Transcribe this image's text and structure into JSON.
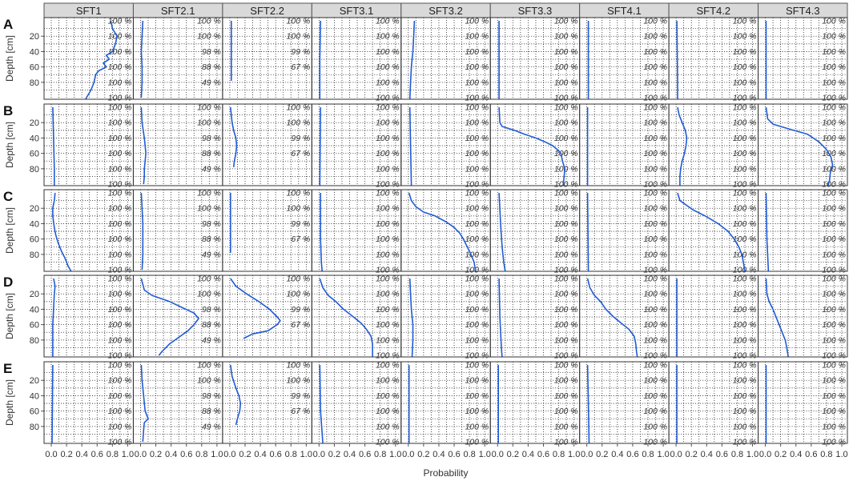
{
  "chart_data": {
    "type": "line",
    "xlabel": "Probability",
    "ylabel": "Depth [cm]",
    "xlim": [
      0,
      1
    ],
    "ylim": [
      100,
      0
    ],
    "x_ticks": [
      "0.0",
      "0.2",
      "0.4",
      "0.6",
      "0.8",
      "1.0"
    ],
    "y_ticks": [
      "20",
      "40",
      "60",
      "80"
    ],
    "y_tick_values": [
      20,
      40,
      60,
      80
    ],
    "grid": true,
    "line_color": "#1f5bd6",
    "columns": [
      "SFT1",
      "SFT2.1",
      "SFT2.2",
      "SFT3.1",
      "SFT3.2",
      "SFT3.3",
      "SFT4.1",
      "SFT4.2",
      "SFT4.3"
    ],
    "rows": [
      "A",
      "B",
      "C",
      "D",
      "E"
    ],
    "pct_depths": [
      0,
      20,
      40,
      60,
      80,
      100
    ],
    "pct_labels": [
      [
        "100 %",
        "100 %",
        "100 %",
        "100 %",
        "100 %",
        "100 %"
      ],
      [
        "100 %",
        "100 %",
        "98 %",
        "88 %",
        "49 %"
      ],
      [
        "100 %",
        "100 %",
        "99 %",
        "67 %"
      ],
      [
        "100 %",
        "100 %",
        "100 %",
        "100 %",
        "100 %",
        "100 %"
      ],
      [
        "100 %",
        "100 %",
        "100 %",
        "100 %",
        "100 %",
        "100 %"
      ],
      [
        "100 %",
        "100 %",
        "100 %",
        "100 %",
        "100 %",
        "100 %"
      ],
      [
        "100 %",
        "100 %",
        "100 %",
        "100 %",
        "100 %",
        "100 %"
      ],
      [
        "100 %",
        "100 %",
        "100 %",
        "100 %",
        "100 %",
        "100 %"
      ],
      [
        "100 %",
        "100 %",
        "100 %",
        "100 %",
        "100 %",
        "100 %"
      ]
    ],
    "max_depth": [
      102,
      100,
      78,
      102,
      102,
      102,
      102,
      102,
      102
    ],
    "profiles": {
      "A": [
        [
          [
            0,
            0.78
          ],
          [
            10,
            0.8
          ],
          [
            20,
            0.86
          ],
          [
            30,
            0.84
          ],
          [
            40,
            0.8
          ],
          [
            45,
            0.72
          ],
          [
            50,
            0.76
          ],
          [
            55,
            0.68
          ],
          [
            60,
            0.72
          ],
          [
            65,
            0.62
          ],
          [
            70,
            0.58
          ],
          [
            80,
            0.56
          ],
          [
            90,
            0.52
          ],
          [
            100,
            0.46
          ],
          [
            102,
            0.45
          ]
        ],
        [
          [
            0,
            0.03
          ],
          [
            20,
            0.02
          ],
          [
            40,
            0.01
          ],
          [
            60,
            0.02
          ],
          [
            80,
            0.02
          ],
          [
            100,
            0.01
          ]
        ],
        [
          [
            0,
            0.02
          ],
          [
            20,
            0.02
          ],
          [
            40,
            0.02
          ],
          [
            60,
            0.02
          ],
          [
            78,
            0.02
          ]
        ],
        [
          [
            0,
            0.02
          ],
          [
            50,
            0.01
          ],
          [
            102,
            0.01
          ]
        ],
        [
          [
            0,
            0.08
          ],
          [
            20,
            0.07
          ],
          [
            40,
            0.06
          ],
          [
            50,
            0.05
          ],
          [
            60,
            0.04
          ],
          [
            80,
            0.03
          ],
          [
            102,
            0.02
          ]
        ],
        [
          [
            0,
            0.02
          ],
          [
            102,
            0.02
          ]
        ],
        [
          [
            0,
            0.02
          ],
          [
            102,
            0.02
          ]
        ],
        [
          [
            0,
            0.01
          ],
          [
            80,
            0.02
          ],
          [
            102,
            0.02
          ]
        ],
        [
          [
            0,
            0.01
          ],
          [
            102,
            0.01
          ]
        ]
      ],
      "B": [
        [
          [
            0,
            0.02
          ],
          [
            40,
            0.03
          ],
          [
            80,
            0.04
          ],
          [
            102,
            0.04
          ]
        ],
        [
          [
            0,
            0.01
          ],
          [
            20,
            0.02
          ],
          [
            40,
            0.05
          ],
          [
            50,
            0.06
          ],
          [
            60,
            0.07
          ],
          [
            70,
            0.06
          ],
          [
            80,
            0.05
          ],
          [
            90,
            0.05
          ],
          [
            100,
            0.04
          ]
        ],
        [
          [
            0,
            0.01
          ],
          [
            20,
            0.03
          ],
          [
            30,
            0.05
          ],
          [
            40,
            0.08
          ],
          [
            50,
            0.09
          ],
          [
            60,
            0.08
          ],
          [
            70,
            0.06
          ],
          [
            78,
            0.05
          ]
        ],
        [
          [
            0,
            0.02
          ],
          [
            102,
            0.01
          ]
        ],
        [
          [
            0,
            0.02
          ],
          [
            50,
            0.03
          ],
          [
            102,
            0.04
          ]
        ],
        [
          [
            0,
            0.02
          ],
          [
            20,
            0.03
          ],
          [
            25,
            0.06
          ],
          [
            30,
            0.22
          ],
          [
            35,
            0.35
          ],
          [
            40,
            0.5
          ],
          [
            45,
            0.62
          ],
          [
            50,
            0.72
          ],
          [
            55,
            0.78
          ],
          [
            60,
            0.83
          ],
          [
            70,
            0.85
          ],
          [
            80,
            0.88
          ],
          [
            90,
            0.87
          ],
          [
            100,
            0.86
          ],
          [
            102,
            0.86
          ]
        ],
        [
          [
            0,
            0.01
          ],
          [
            102,
            0.01
          ]
        ],
        [
          [
            0,
            0.02
          ],
          [
            10,
            0.04
          ],
          [
            20,
            0.08
          ],
          [
            30,
            0.12
          ],
          [
            40,
            0.14
          ],
          [
            50,
            0.13
          ],
          [
            60,
            0.11
          ],
          [
            70,
            0.08
          ],
          [
            80,
            0.06
          ],
          [
            90,
            0.05
          ],
          [
            102,
            0.05
          ]
        ],
        [
          [
            0,
            0.01
          ],
          [
            15,
            0.03
          ],
          [
            22,
            0.1
          ],
          [
            28,
            0.3
          ],
          [
            35,
            0.55
          ],
          [
            45,
            0.7
          ],
          [
            55,
            0.8
          ],
          [
            65,
            0.86
          ],
          [
            75,
            0.88
          ],
          [
            85,
            0.85
          ],
          [
            95,
            0.84
          ],
          [
            102,
            0.82
          ]
        ]
      ],
      "C": [
        [
          [
            0,
            0.05
          ],
          [
            10,
            0.04
          ],
          [
            20,
            0.02
          ],
          [
            30,
            0.02
          ],
          [
            45,
            0.04
          ],
          [
            55,
            0.06
          ],
          [
            65,
            0.09
          ],
          [
            75,
            0.13
          ],
          [
            85,
            0.18
          ],
          [
            95,
            0.22
          ],
          [
            102,
            0.26
          ]
        ],
        [
          [
            0,
            0.01
          ],
          [
            20,
            0.02
          ],
          [
            40,
            0.03
          ],
          [
            60,
            0.03
          ],
          [
            80,
            0.03
          ],
          [
            100,
            0.02
          ]
        ],
        [
          [
            0,
            0.01
          ],
          [
            40,
            0.01
          ],
          [
            78,
            0.01
          ]
        ],
        [
          [
            0,
            0.02
          ],
          [
            60,
            0.02
          ],
          [
            90,
            0.03
          ],
          [
            102,
            0.04
          ]
        ],
        [
          [
            0,
            0.01
          ],
          [
            10,
            0.04
          ],
          [
            18,
            0.1
          ],
          [
            25,
            0.2
          ],
          [
            30,
            0.35
          ],
          [
            38,
            0.5
          ],
          [
            45,
            0.6
          ],
          [
            52,
            0.67
          ],
          [
            60,
            0.72
          ],
          [
            70,
            0.77
          ],
          [
            80,
            0.82
          ],
          [
            90,
            0.86
          ],
          [
            102,
            0.88
          ]
        ],
        [
          [
            0,
            0.02
          ],
          [
            40,
            0.04
          ],
          [
            70,
            0.06
          ],
          [
            90,
            0.08
          ],
          [
            102,
            0.1
          ]
        ],
        [
          [
            0,
            0.01
          ],
          [
            102,
            0.02
          ]
        ],
        [
          [
            0,
            0.02
          ],
          [
            10,
            0.05
          ],
          [
            15,
            0.12
          ],
          [
            22,
            0.22
          ],
          [
            30,
            0.38
          ],
          [
            40,
            0.55
          ],
          [
            50,
            0.68
          ],
          [
            60,
            0.76
          ],
          [
            70,
            0.82
          ],
          [
            80,
            0.86
          ],
          [
            90,
            0.88
          ],
          [
            102,
            0.9
          ]
        ],
        [
          [
            0,
            0.01
          ],
          [
            60,
            0.02
          ],
          [
            102,
            0.04
          ]
        ]
      ],
      "D": [
        [
          [
            0,
            0.03
          ],
          [
            10,
            0.05
          ],
          [
            20,
            0.04
          ],
          [
            40,
            0.03
          ],
          [
            60,
            0.02
          ],
          [
            80,
            0.02
          ],
          [
            102,
            0.02
          ]
        ],
        [
          [
            0,
            0.01
          ],
          [
            15,
            0.05
          ],
          [
            22,
            0.15
          ],
          [
            30,
            0.38
          ],
          [
            38,
            0.55
          ],
          [
            45,
            0.7
          ],
          [
            52,
            0.76
          ],
          [
            60,
            0.7
          ],
          [
            68,
            0.62
          ],
          [
            75,
            0.52
          ],
          [
            85,
            0.38
          ],
          [
            95,
            0.28
          ],
          [
            100,
            0.24
          ]
        ],
        [
          [
            0,
            0.01
          ],
          [
            10,
            0.08
          ],
          [
            20,
            0.22
          ],
          [
            30,
            0.38
          ],
          [
            40,
            0.52
          ],
          [
            50,
            0.62
          ],
          [
            55,
            0.66
          ],
          [
            60,
            0.62
          ],
          [
            68,
            0.5
          ],
          [
            72,
            0.3
          ],
          [
            78,
            0.18
          ]
        ],
        [
          [
            0,
            0.01
          ],
          [
            12,
            0.05
          ],
          [
            22,
            0.12
          ],
          [
            30,
            0.22
          ],
          [
            40,
            0.32
          ],
          [
            50,
            0.45
          ],
          [
            58,
            0.55
          ],
          [
            66,
            0.62
          ],
          [
            75,
            0.68
          ],
          [
            85,
            0.7
          ],
          [
            95,
            0.7
          ],
          [
            102,
            0.7
          ]
        ],
        [
          [
            0,
            0.02
          ],
          [
            20,
            0.03
          ],
          [
            40,
            0.04
          ],
          [
            60,
            0.06
          ],
          [
            80,
            0.06
          ],
          [
            102,
            0.05
          ]
        ],
        [
          [
            0,
            0.02
          ],
          [
            50,
            0.03
          ],
          [
            90,
            0.05
          ],
          [
            102,
            0.06
          ]
        ],
        [
          [
            0,
            0.01
          ],
          [
            12,
            0.04
          ],
          [
            22,
            0.1
          ],
          [
            30,
            0.18
          ],
          [
            40,
            0.25
          ],
          [
            50,
            0.35
          ],
          [
            58,
            0.45
          ],
          [
            66,
            0.55
          ],
          [
            75,
            0.62
          ],
          [
            85,
            0.64
          ],
          [
            95,
            0.65
          ],
          [
            102,
            0.66
          ]
        ],
        [
          [
            0,
            0.01
          ],
          [
            102,
            0.01
          ]
        ],
        [
          [
            0,
            0.01
          ],
          [
            20,
            0.02
          ],
          [
            30,
            0.05
          ],
          [
            40,
            0.1
          ],
          [
            50,
            0.14
          ],
          [
            60,
            0.18
          ],
          [
            70,
            0.22
          ],
          [
            80,
            0.26
          ],
          [
            90,
            0.28
          ],
          [
            102,
            0.3
          ]
        ]
      ],
      "E": [
        [
          [
            0,
            0.02
          ],
          [
            102,
            0.01
          ]
        ],
        [
          [
            0,
            0.01
          ],
          [
            20,
            0.02
          ],
          [
            40,
            0.04
          ],
          [
            60,
            0.06
          ],
          [
            70,
            0.1
          ],
          [
            75,
            0.05
          ],
          [
            85,
            0.04
          ],
          [
            100,
            0.03
          ]
        ],
        [
          [
            0,
            0.01
          ],
          [
            15,
            0.03
          ],
          [
            30,
            0.08
          ],
          [
            40,
            0.12
          ],
          [
            50,
            0.14
          ],
          [
            60,
            0.13
          ],
          [
            70,
            0.1
          ],
          [
            78,
            0.08
          ]
        ],
        [
          [
            0,
            0.01
          ],
          [
            60,
            0.02
          ],
          [
            102,
            0.05
          ]
        ],
        [
          [
            0,
            0.01
          ],
          [
            102,
            0.01
          ]
        ],
        [
          [
            0,
            0.01
          ],
          [
            102,
            0.01
          ]
        ],
        [
          [
            0,
            0.01
          ],
          [
            50,
            0.02
          ],
          [
            102,
            0.03
          ]
        ],
        [
          [
            0,
            0.01
          ],
          [
            102,
            0.01
          ]
        ],
        [
          [
            0,
            0.01
          ],
          [
            102,
            0.01
          ]
        ]
      ]
    }
  }
}
